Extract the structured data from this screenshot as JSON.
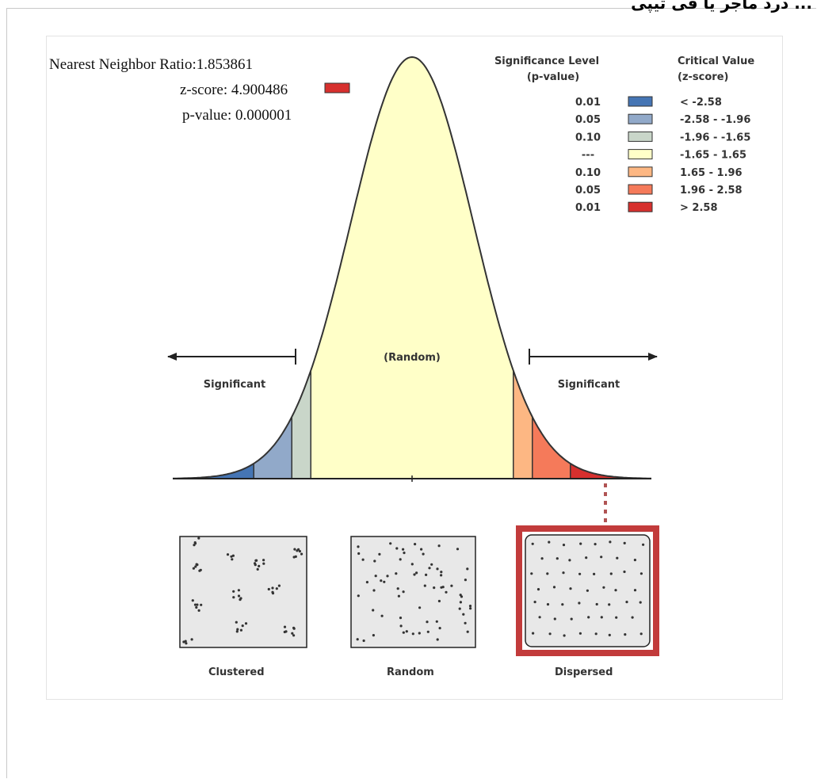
{
  "page": {
    "header_text": "... درد ماجر یا فی تیپی"
  },
  "stats": {
    "nnr_label": "Nearest Neighbor Ratio:",
    "nnr_value": "1.853861",
    "z_label": "z-score:",
    "z_value": "4.900486",
    "p_label": "p-value:",
    "p_value": "0.000001",
    "z_marker_color": "#d7302e"
  },
  "legend": {
    "sig_header_line1": "Significance Level",
    "sig_header_line2": "(p-value)",
    "crit_header_line1": "Critical Value",
    "crit_header_line2": "(z-score)",
    "rows": [
      {
        "p": "0.01",
        "z": "< -2.58",
        "color": "#4575b4"
      },
      {
        "p": "0.05",
        "z": "-2.58 - -1.96",
        "color": "#91a9c9"
      },
      {
        "p": "0.10",
        "z": "-1.96 - -1.65",
        "color": "#c9d6c9"
      },
      {
        "p": "---",
        "z": "-1.65 - 1.65",
        "color": "#ffffc8"
      },
      {
        "p": "0.10",
        "z": "1.65 - 1.96",
        "color": "#fdb783"
      },
      {
        "p": "0.05",
        "z": "1.96 - 2.58",
        "color": "#f57a5a"
      },
      {
        "p": "0.01",
        "z": "> 2.58",
        "color": "#d7302e"
      }
    ]
  },
  "chart_data": {
    "type": "area",
    "distribution": "standard normal",
    "x_range": [
      -3.9,
      3.9
    ],
    "thresholds": [
      -2.58,
      -1.96,
      -1.65,
      1.65,
      1.96,
      2.58
    ],
    "regions": [
      {
        "from": -3.9,
        "to": -2.58,
        "color": "#4575b4"
      },
      {
        "from": -2.58,
        "to": -1.96,
        "color": "#91a9c9"
      },
      {
        "from": -1.96,
        "to": -1.65,
        "color": "#c9d6c9"
      },
      {
        "from": -1.65,
        "to": 1.65,
        "color": "#ffffc8"
      },
      {
        "from": 1.65,
        "to": 1.96,
        "color": "#fdb783"
      },
      {
        "from": 1.96,
        "to": 2.58,
        "color": "#f57a5a"
      },
      {
        "from": 2.58,
        "to": 3.9,
        "color": "#d7302e"
      }
    ],
    "center_label": "(Random)",
    "left_label": "Significant",
    "right_label": "Significant",
    "pattern_labels": [
      "Clustered",
      "Random",
      "Dispersed"
    ],
    "highlighted_pattern": "Dispersed",
    "highlight_color": "#c23b3b"
  }
}
